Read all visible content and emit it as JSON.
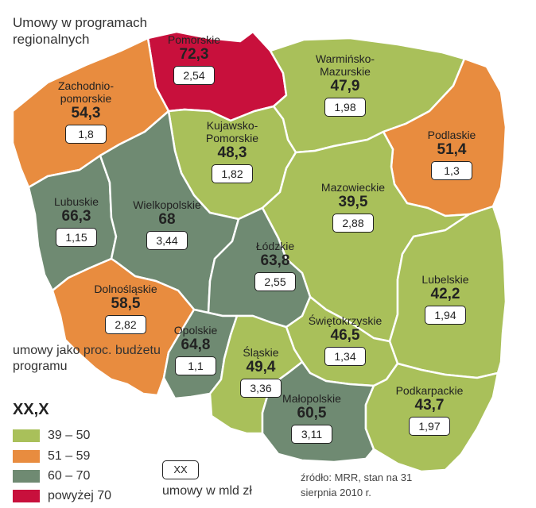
{
  "map_title": "Umowy w programach regionalnych",
  "legend": {
    "title": "umowy jako proc. budżetu programu",
    "value_placeholder": "XX,X",
    "bins": [
      {
        "label": "39  –  50",
        "color": "#a9c05a"
      },
      {
        "label": "51 – 59",
        "color": "#e88c3f"
      },
      {
        "label": "60 – 70",
        "color": "#6f8a72"
      },
      {
        "label": "powyżej 70",
        "color": "#c8103c"
      }
    ],
    "unit_box": "XX",
    "unit_label": "umowy w mld zł"
  },
  "source": "źródło: MRR, stan na 31 sierpnia 2010 r.",
  "regions": [
    {
      "id": "pomorskie",
      "name": "Pomorskie",
      "pct": "72,3",
      "bln": "2,54",
      "color": "#c8103c"
    },
    {
      "id": "zachodniopomorskie",
      "name": "Zachodnio-\npomorskie",
      "pct": "54,3",
      "bln": "1,8",
      "color": "#e88c3f"
    },
    {
      "id": "warminsko",
      "name": "Warmińsko-\nMazurskie",
      "pct": "47,9",
      "bln": "1,98",
      "color": "#a9c05a"
    },
    {
      "id": "podlaskie",
      "name": "Podlaskie",
      "pct": "51,4",
      "bln": "1,3",
      "color": "#e88c3f"
    },
    {
      "id": "kujawsko",
      "name": "Kujawsko-\nPomorskie",
      "pct": "48,3",
      "bln": "1,82",
      "color": "#a9c05a"
    },
    {
      "id": "mazowieckie",
      "name": "Mazowieckie",
      "pct": "39,5",
      "bln": "2,88",
      "color": "#a9c05a"
    },
    {
      "id": "lubuskie",
      "name": "Lubuskie",
      "pct": "66,3",
      "bln": "1,15",
      "color": "#6f8a72"
    },
    {
      "id": "wielkopolskie",
      "name": "Wielkopolskie",
      "pct": "68",
      "bln": "3,44",
      "color": "#6f8a72"
    },
    {
      "id": "lodzkie",
      "name": "Łódzkie",
      "pct": "63,8",
      "bln": "2,55",
      "color": "#6f8a72"
    },
    {
      "id": "lubelskie",
      "name": "Lubelskie",
      "pct": "42,2",
      "bln": "1,94",
      "color": "#a9c05a"
    },
    {
      "id": "dolnoslaskie",
      "name": "Dolnośląskie",
      "pct": "58,5",
      "bln": "2,82",
      "color": "#e88c3f"
    },
    {
      "id": "swietokrzyskie",
      "name": "Świętokrzyskie",
      "pct": "46,5",
      "bln": "1,34",
      "color": "#a9c05a"
    },
    {
      "id": "opolskie",
      "name": "Opolskie",
      "pct": "64,8",
      "bln": "1,1",
      "color": "#6f8a72"
    },
    {
      "id": "slaskie",
      "name": "Śląskie",
      "pct": "49,4",
      "bln": "3,36",
      "color": "#a9c05a"
    },
    {
      "id": "malopolskie",
      "name": "Małopolskie",
      "pct": "60,5",
      "bln": "3,11",
      "color": "#6f8a72"
    },
    {
      "id": "podkarpackie",
      "name": "Podkarpackie",
      "pct": "43,7",
      "bln": "1,97",
      "color": "#a9c05a"
    }
  ]
}
